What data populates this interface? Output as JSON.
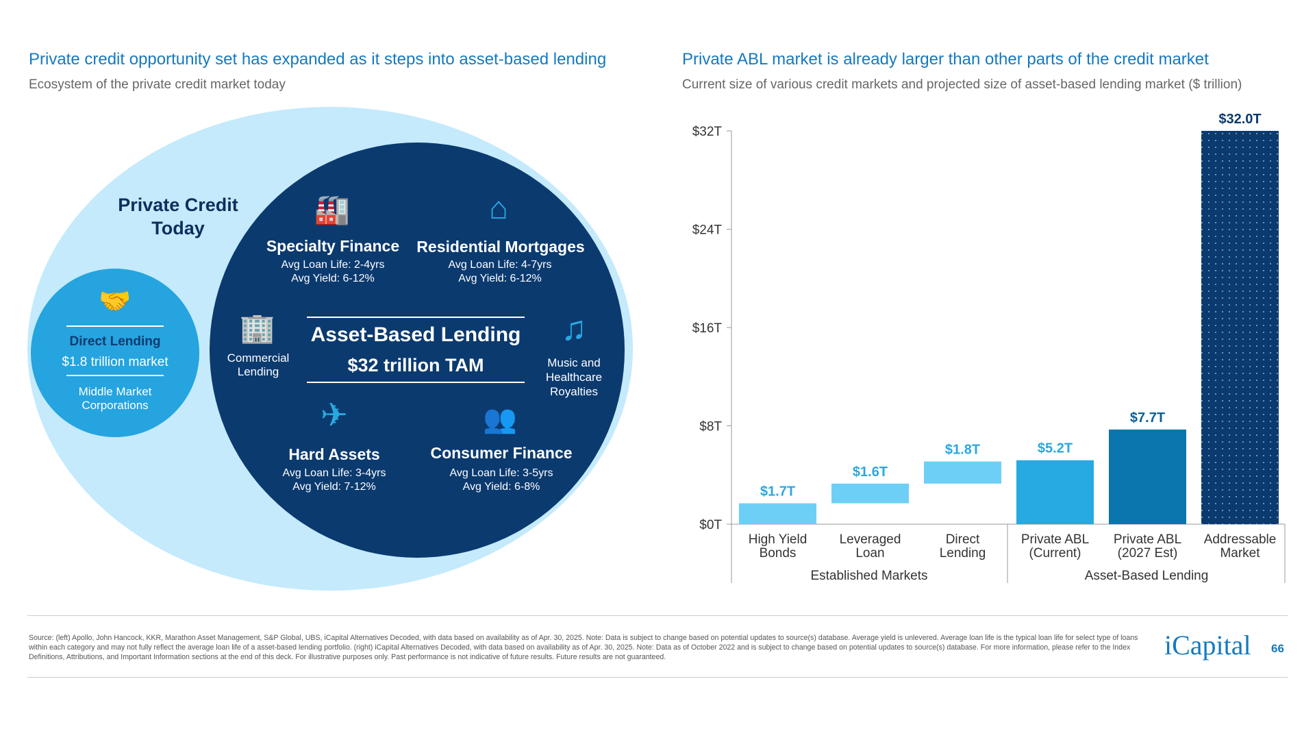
{
  "left": {
    "title": "Private credit opportunity set has expanded as it steps into asset-based lending",
    "subtitle": "Ecosystem of the private credit market today",
    "outer_label": "Private Credit Today",
    "direct": {
      "title": "Direct Lending",
      "size": "$1.8 trillion market",
      "desc": "Middle Market Corporations"
    },
    "center": {
      "title": "Asset-Based Lending",
      "tam": "$32 trillion TAM"
    },
    "segments": [
      {
        "name": "Specialty Finance",
        "life": "Avg Loan Life: 2-4yrs",
        "yield": "Avg Yield: 6-12%",
        "icon": "factory-icon"
      },
      {
        "name": "Residential Mortgages",
        "life": "Avg Loan Life: 4-7yrs",
        "yield": "Avg Yield: 6-12%",
        "icon": "house-icon"
      },
      {
        "name": "Commercial Lending",
        "icon": "buildings-icon"
      },
      {
        "name": "Music and Healthcare Royalties",
        "icon": "music-note-icon"
      },
      {
        "name": "Hard Assets",
        "life": "Avg Loan Life: 3-4yrs",
        "yield": "Avg Yield: 7-12%",
        "icon": "airplane-icon"
      },
      {
        "name": "Consumer Finance",
        "life": "Avg Loan Life: 3-5yrs",
        "yield": "Avg Yield: 6-8%",
        "icon": "people-icon"
      }
    ]
  },
  "chart_data": {
    "type": "bar",
    "title": "Private ABL market is already larger than other parts of the credit market",
    "subtitle": "Current size of various credit markets and projected size of asset-based lending market ($ trillion)",
    "categories": [
      "High Yield Bonds",
      "Leveraged Loan",
      "Direct Lending",
      "Private ABL (Current)",
      "Private ABL (2027 Est)",
      "Addressable Market"
    ],
    "values": [
      1.7,
      1.6,
      1.8,
      5.2,
      7.7,
      32.0
    ],
    "bases": [
      0,
      1.7,
      3.3,
      0,
      0,
      0
    ],
    "labels": [
      "$1.7T",
      "$1.6T",
      "$1.8T",
      "$5.2T",
      "$7.7T",
      "$32.0T"
    ],
    "colors": [
      "#6dcff6",
      "#6dcff6",
      "#6dcff6",
      "#27a9e1",
      "#0a76ad",
      "#0b3a6f"
    ],
    "label_colors": [
      "#29a8e0",
      "#29a8e0",
      "#29a8e0",
      "#29a8e0",
      "#0b5f93",
      "#0b3a6f"
    ],
    "groups": [
      "Established Markets",
      "Asset-Based Lending"
    ],
    "yticks": [
      "$0T",
      "$8T",
      "$16T",
      "$24T",
      "$32T"
    ],
    "ytick_values": [
      0,
      8,
      16,
      24,
      32
    ],
    "ylim": [
      0,
      32
    ],
    "grid": false
  },
  "footer": {
    "source": "Source: (left) Apollo, John Hancock, KKR, Marathon Asset Management, S&P Global, UBS, iCapital Alternatives Decoded, with data based on availability as of Apr. 30, 2025. Note: Data is subject to change based on potential updates to source(s) database. Average yield is unlevered. Average loan life is the typical loan life for select type of loans within each category and may not fully reflect the average loan life of a asset-based lending portfolio. (right) iCapital Alternatives Decoded, with data based on availability as of Apr. 30, 2025. Note: Data as of October 2022 and is subject to change based on potential updates to source(s) database. For more information, please refer to the Index Definitions, Attributions, and Important Information sections at the end of this deck. For illustrative purposes only. Past performance is not indicative of future results. Future results are not guaranteed.",
    "logo": "iCapital",
    "page": "66"
  }
}
